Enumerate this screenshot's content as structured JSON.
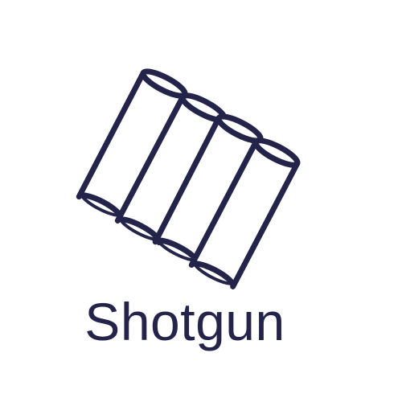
{
  "icon": {
    "name": "shotgun-shells-icon",
    "color": "#24244a"
  },
  "label": {
    "text": "Shotgun",
    "color": "#24244a"
  },
  "background_color": "#ffffff"
}
